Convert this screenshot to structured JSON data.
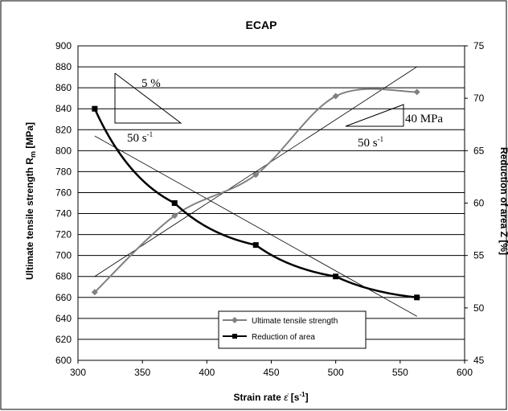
{
  "chart_data": {
    "type": "line",
    "title": "ECAP",
    "xlabel": "Strain rate",
    "xlabel_symbol": "ε̇",
    "xlabel_unit": "[s",
    "xlabel_unit_exp": "-1",
    "xlabel_unit_end": "]",
    "ylabel_left": "Ultimate tensile strength R",
    "ylabel_left_sub": "m",
    "ylabel_left_unit": " [MPa]",
    "ylabel_right": "Reduction of area Z [%]",
    "xlim": [
      300,
      600
    ],
    "ylim_left": [
      600,
      900
    ],
    "ylim_right": [
      45,
      75
    ],
    "x_ticks": [
      "300",
      "350",
      "400",
      "450",
      "500",
      "550",
      "600"
    ],
    "y_left_ticks": [
      "600",
      "620",
      "640",
      "660",
      "680",
      "700",
      "720",
      "740",
      "760",
      "780",
      "800",
      "820",
      "840",
      "860",
      "880",
      "900"
    ],
    "y_right_ticks": [
      "45",
      "50",
      "55",
      "60",
      "65",
      "70",
      "75"
    ],
    "grid": "horizontal",
    "series": [
      {
        "name": "Ultimate tensile strength",
        "axis": "left",
        "color": "#808080",
        "marker": "diamond",
        "x": [
          313,
          375,
          438,
          500,
          563
        ],
        "y": [
          665,
          738,
          777,
          852,
          856
        ]
      },
      {
        "name": "Reduction of area",
        "axis": "right",
        "color": "#000000",
        "marker": "square",
        "x": [
          313,
          375,
          438,
          500,
          563
        ],
        "y": [
          69.0,
          60.0,
          56.0,
          53.0,
          51.0
        ]
      }
    ],
    "trendlines": [
      {
        "of": "Ultimate tensile strength",
        "axis": "left",
        "x": [
          313,
          563
        ],
        "y": [
          680,
          880
        ]
      },
      {
        "of": "Reduction of area",
        "axis": "right",
        "x": [
          313,
          563
        ],
        "y": [
          66.4,
          49.2
        ]
      }
    ],
    "annotations": [
      {
        "text": "5 %"
      },
      {
        "text": "50 s",
        "sup": "-1"
      },
      {
        "text": "40 MPa"
      },
      {
        "text": "50 s",
        "sup": "-1"
      }
    ],
    "legend": {
      "position": "bottom-center",
      "entries": [
        "Ultimate tensile strength",
        "Reduction of area"
      ]
    }
  }
}
